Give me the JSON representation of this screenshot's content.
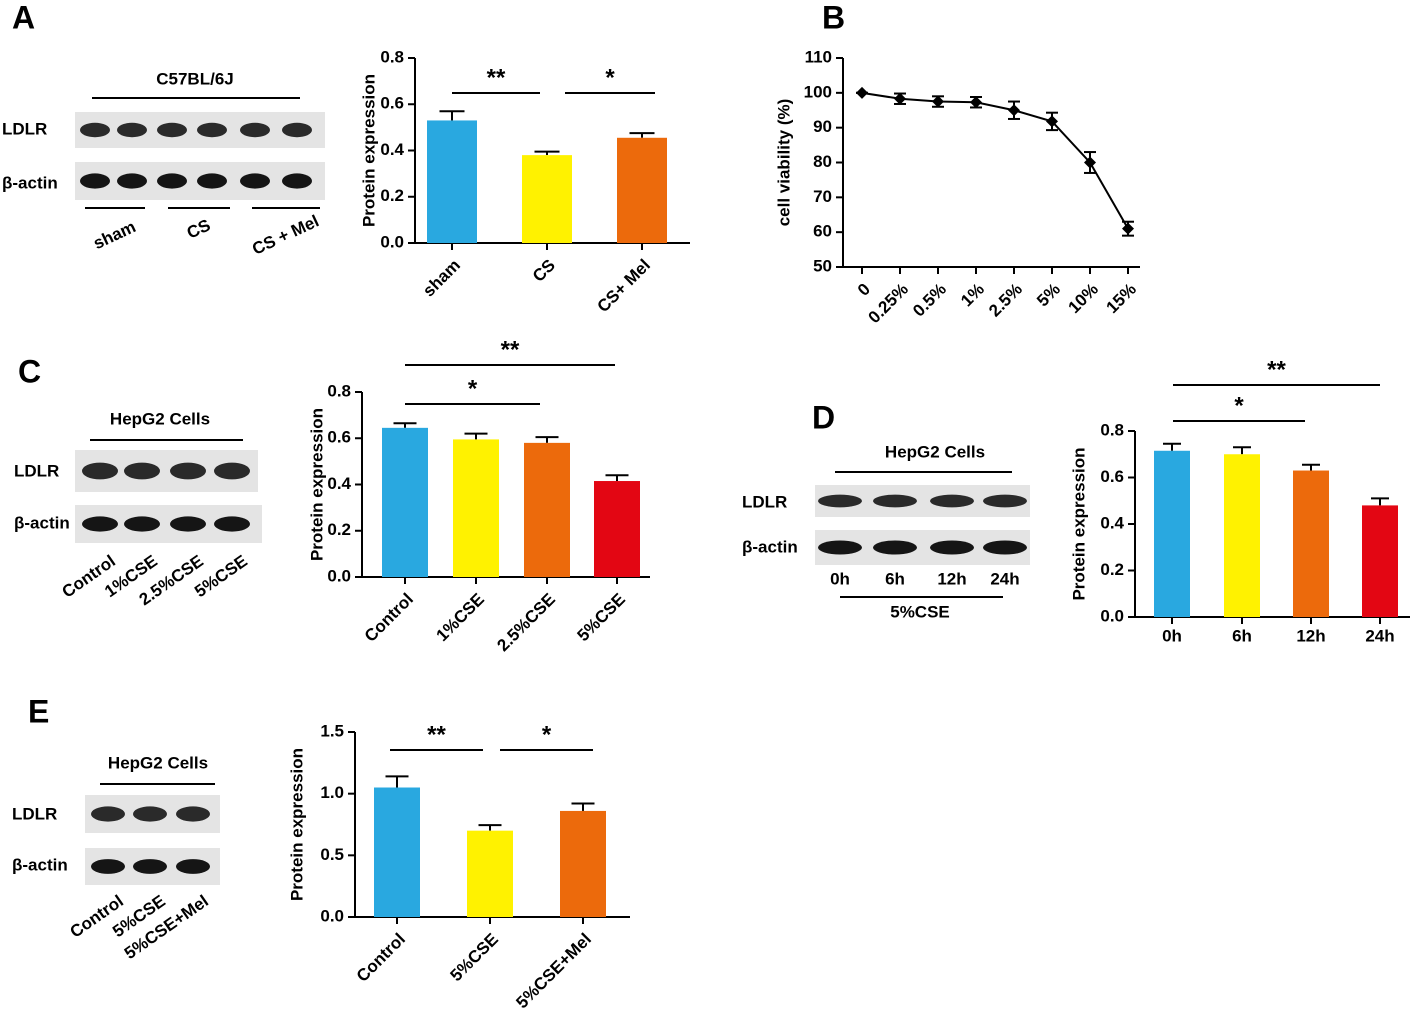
{
  "chart_data": [
    {
      "type": "bar",
      "panel": "A",
      "blot": {
        "title": "C57BL/6J",
        "row_labels": [
          "LDLR",
          "β-actin"
        ],
        "lane_labels": [
          "sham",
          "CS",
          "CS + Mel"
        ]
      },
      "y_label": "Protein expression",
      "categories": [
        "sham",
        "CS",
        "CS+ Mel"
      ],
      "values": [
        0.53,
        0.38,
        0.455
      ],
      "errors": [
        0.04,
        0.015,
        0.02
      ],
      "colors": [
        "#29a8e0",
        "#fff200",
        "#ec6a0c"
      ],
      "ylim": [
        0,
        0.8
      ],
      "yticks": [
        {
          "value": 0,
          "label": "0.0"
        },
        0.2,
        0.4,
        0.6,
        0.8
      ],
      "significance": [
        "**",
        "*"
      ]
    },
    {
      "type": "line",
      "panel": "B",
      "y_label": "cell viability (%)",
      "categories": [
        "0",
        "0.25%",
        "0.5%",
        "1%",
        "2.5%",
        "5%",
        "10%",
        "15%"
      ],
      "values": [
        100,
        98.3,
        97.5,
        97.3,
        95,
        91.8,
        80,
        61
      ],
      "errors": [
        0,
        1.5,
        1.5,
        1.5,
        2.5,
        2.5,
        3,
        2
      ],
      "color": "#000000",
      "ylim": [
        50,
        110
      ],
      "yticks": [
        50,
        60,
        70,
        80,
        90,
        100,
        110
      ]
    },
    {
      "type": "bar",
      "panel": "C",
      "blot": {
        "title": "HepG2 Cells",
        "row_labels": [
          "LDLR",
          "β-actin"
        ],
        "lane_labels": [
          "Control",
          "1%CSE",
          "2.5%CSE",
          "5%CSE"
        ]
      },
      "y_label": "Protein expression",
      "categories": [
        "Control",
        "1%CSE",
        "2.5%CSE",
        "5%CSE"
      ],
      "values": [
        0.645,
        0.595,
        0.58,
        0.415
      ],
      "errors": [
        0.02,
        0.025,
        0.025,
        0.025
      ],
      "colors": [
        "#29a8e0",
        "#fff200",
        "#ec6a0c",
        "#e30613"
      ],
      "ylim": [
        0,
        0.8
      ],
      "yticks": [
        {
          "value": 0,
          "label": "0.0"
        },
        0.2,
        0.4,
        0.6,
        0.8
      ],
      "significance": [
        "*",
        "**"
      ]
    },
    {
      "type": "bar",
      "panel": "D",
      "blot": {
        "title": "HepG2 Cells",
        "row_labels": [
          "LDLR",
          "β-actin"
        ],
        "lane_labels": [
          "0h",
          "6h",
          "12h",
          "24h"
        ],
        "treatment": "5%CSE"
      },
      "y_label": "Protein expression",
      "categories": [
        "0h",
        "6h",
        "12h",
        "24h"
      ],
      "values": [
        0.715,
        0.7,
        0.63,
        0.48
      ],
      "errors": [
        0.03,
        0.03,
        0.025,
        0.03
      ],
      "colors": [
        "#29a8e0",
        "#fff200",
        "#ec6a0c",
        "#e30613"
      ],
      "ylim": [
        0,
        0.8
      ],
      "yticks": [
        {
          "value": 0,
          "label": "0.0"
        },
        0.2,
        0.4,
        0.6,
        0.8
      ],
      "significance": [
        "*",
        "**"
      ]
    },
    {
      "type": "bar",
      "panel": "E",
      "blot": {
        "title": "HepG2 Cells",
        "row_labels": [
          "LDLR",
          "β-actin"
        ],
        "lane_labels": [
          "Control",
          "5%CSE",
          "5%CSE+Mel"
        ]
      },
      "y_label": "Protein expression",
      "categories": [
        "Control",
        "5%CSE",
        "5%CSE+Mel"
      ],
      "values": [
        1.05,
        0.7,
        0.86
      ],
      "errors": [
        0.09,
        0.045,
        0.06
      ],
      "colors": [
        "#29a8e0",
        "#fff200",
        "#ec6a0c"
      ],
      "ylim": [
        0,
        1.5
      ],
      "yticks": [
        {
          "value": 0,
          "label": "0.0"
        },
        0.5,
        {
          "value": 1,
          "label": "1.0"
        },
        1.5
      ],
      "significance": [
        "**",
        "*"
      ]
    }
  ]
}
